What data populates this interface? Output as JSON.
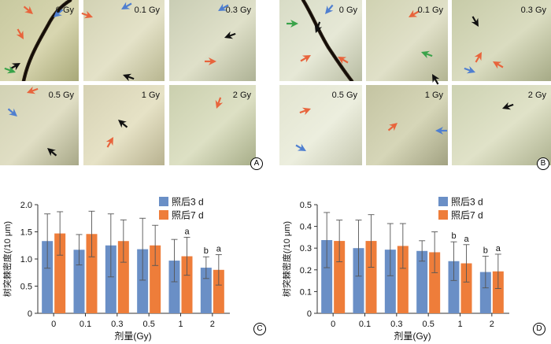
{
  "panel_labels": [
    "A",
    "B",
    "C",
    "D"
  ],
  "panels": {
    "A": {
      "images": [
        {
          "label": "0 Gy"
        },
        {
          "label": "0.1 Gy"
        },
        {
          "label": "0.3 Gy"
        },
        {
          "label": "0.5 Gy"
        },
        {
          "label": "1 Gy"
        },
        {
          "label": "2 Gy"
        }
      ]
    },
    "B": {
      "images": [
        {
          "label": "0 Gy"
        },
        {
          "label": "0.1 Gy"
        },
        {
          "label": "0.3 Gy"
        },
        {
          "label": "0.5 Gy"
        },
        {
          "label": "1 Gy"
        },
        {
          "label": "2 Gy"
        }
      ]
    }
  },
  "colors": {
    "series_3d": "#6a8fc6",
    "series_7d": "#ee7d3a",
    "arrow_black": "#111111",
    "arrow_red": "#e8643c",
    "arrow_blue": "#4f7fd0",
    "arrow_green": "#3aa34a"
  },
  "chart_data": [
    {
      "type": "bar",
      "panel": "C",
      "categories": [
        "0",
        "0.1",
        "0.3",
        "0.5",
        "1",
        "2"
      ],
      "xlabel": "剂量(Gy)",
      "ylabel": "树突棘密度(/10 μm)",
      "ylim": [
        0,
        2.0
      ],
      "yticks": [
        "0",
        "0.5",
        "1.0",
        "1.5",
        "2.0"
      ],
      "legend_position": "top-right",
      "series": [
        {
          "name": "照后3 d",
          "values": [
            1.33,
            1.17,
            1.25,
            1.18,
            0.97,
            0.84
          ],
          "errors": [
            0.5,
            0.28,
            0.58,
            0.57,
            0.39,
            0.2
          ]
        },
        {
          "name": "照后7 d",
          "values": [
            1.47,
            1.46,
            1.33,
            1.25,
            1.05,
            0.8
          ],
          "errors": [
            0.4,
            0.42,
            0.39,
            0.37,
            0.35,
            0.28
          ]
        }
      ],
      "annotations": [
        {
          "category": "1",
          "series": 1,
          "text": "a"
        },
        {
          "category": "2",
          "series": 0,
          "text": "b"
        },
        {
          "category": "2",
          "series": 1,
          "text": "a"
        }
      ]
    },
    {
      "type": "bar",
      "panel": "D",
      "categories": [
        "0",
        "0.1",
        "0.3",
        "0.5",
        "1",
        "2"
      ],
      "xlabel": "剂量(Gy)",
      "ylabel": "树突棘密度(/10 μm)",
      "ylim": [
        0,
        0.5
      ],
      "yticks": [
        "0",
        "0.1",
        "0.2",
        "0.3",
        "0.4",
        "0.5"
      ],
      "legend_position": "top-right",
      "series": [
        {
          "name": "照后3 d",
          "values": [
            0.337,
            0.3,
            0.293,
            0.287,
            0.24,
            0.19
          ],
          "errors": [
            0.127,
            0.129,
            0.12,
            0.047,
            0.089,
            0.073
          ]
        },
        {
          "name": "照后7 d",
          "values": [
            0.333,
            0.333,
            0.31,
            0.281,
            0.23,
            0.193
          ],
          "errors": [
            0.096,
            0.121,
            0.103,
            0.094,
            0.086,
            0.079
          ]
        }
      ],
      "annotations": [
        {
          "category": "1",
          "series": 0,
          "text": "b"
        },
        {
          "category": "1",
          "series": 1,
          "text": "a"
        },
        {
          "category": "2",
          "series": 0,
          "text": "b"
        },
        {
          "category": "2",
          "series": 1,
          "text": "a"
        }
      ]
    }
  ]
}
